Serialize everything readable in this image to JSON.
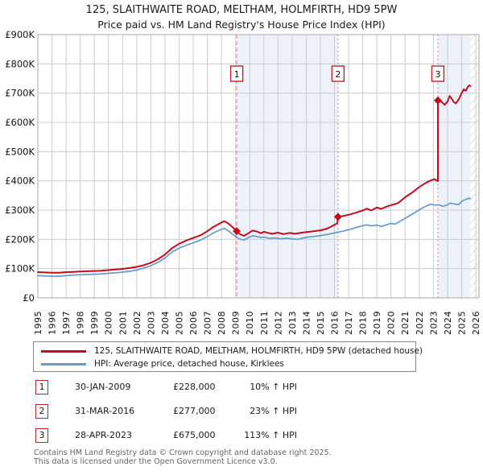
{
  "title": {
    "line1": "125, SLAITHWAITE ROAD, MELTHAM, HOLMFIRTH, HD9 5PW",
    "line2": "Price paid vs. HM Land Registry's House Price Index (HPI)"
  },
  "legend": {
    "entries": [
      {
        "label": "125, SLAITHWAITE ROAD, MELTHAM, HOLMFIRTH, HD9 5PW (detached house)",
        "color": "#c40a1c"
      },
      {
        "label": "HPI: Average price, detached house, Kirklees",
        "color": "#6699cc"
      }
    ]
  },
  "transactions": [
    {
      "num": "1",
      "date": "30-JAN-2009",
      "price": "£228,000",
      "hpi_change": "10% ↑ HPI"
    },
    {
      "num": "2",
      "date": "31-MAR-2016",
      "price": "£277,000",
      "hpi_change": "23% ↑ HPI"
    },
    {
      "num": "3",
      "date": "28-APR-2023",
      "price": "£675,000",
      "hpi_change": "113% ↑ HPI"
    }
  ],
  "footer": {
    "line1": "Contains HM Land Registry data © Crown copyright and database right 2025.",
    "line2": "This data is licensed under the Open Government Licence v3.0."
  },
  "chart_data": {
    "type": "line",
    "title": "125, SLAITHWAITE ROAD, MELTHAM, HOLMFIRTH, HD9 5PW",
    "subtitle": "Price paid vs. HM Land Registry's House Price Index (HPI)",
    "units": "GBP_thousands",
    "x_range": [
      1995,
      2026
    ],
    "y_range": [
      0,
      900
    ],
    "grid": true,
    "legend_position": "bottom",
    "colors": {
      "property_line": "#c40a1c",
      "hpi_line": "#6699cc",
      "sale_guide_line": "#ee7a7a",
      "shaded_region": "#edf2fa",
      "gridline": "#cccccc",
      "plot_border": "#aaaaaa",
      "hatch_line": "#c0c5cd"
    },
    "y_ticks": [
      {
        "v": 0,
        "label": "£0"
      },
      {
        "v": 100,
        "label": "£100K"
      },
      {
        "v": 200,
        "label": "£200K"
      },
      {
        "v": 300,
        "label": "£300K"
      },
      {
        "v": 400,
        "label": "£400K"
      },
      {
        "v": 500,
        "label": "£500K"
      },
      {
        "v": 600,
        "label": "£600K"
      },
      {
        "v": 700,
        "label": "£700K"
      },
      {
        "v": 800,
        "label": "£800K"
      },
      {
        "v": 900,
        "label": "£900K"
      }
    ],
    "x_ticks": [
      1995,
      1996,
      1997,
      1998,
      1999,
      2000,
      2001,
      2002,
      2003,
      2004,
      2005,
      2006,
      2007,
      2008,
      2009,
      2010,
      2011,
      2012,
      2013,
      2014,
      2015,
      2016,
      2017,
      2018,
      2019,
      2020,
      2021,
      2022,
      2023,
      2024,
      2025,
      2026
    ],
    "shaded_regions": [
      [
        2009.08,
        2016.25
      ],
      [
        2023.32,
        2025.62
      ]
    ],
    "hatch_region": {
      "start": 2025.62
    },
    "sales": [
      {
        "num": "1",
        "year": 2009.08,
        "price_k": 228,
        "date": "30-JAN-2009",
        "pct_vs_hpi": "10% ↑ HPI",
        "dash": "5,3"
      },
      {
        "num": "2",
        "year": 2016.25,
        "price_k": 277,
        "date": "31-MAR-2016",
        "pct_vs_hpi": "23% ↑ HPI",
        "dash": "2,3"
      },
      {
        "num": "3",
        "year": 2023.32,
        "price_k": 675,
        "date": "28-APR-2023",
        "pct_vs_hpi": "113% ↑ HPI",
        "dash": "2,3"
      }
    ],
    "series": [
      {
        "name": "125, SLAITHWAITE ROAD, MELTHAM, HOLMFIRTH, HD9 5PW (detached house)",
        "color": "#c40a1c",
        "width": 2,
        "points": [
          [
            1995,
            88
          ],
          [
            1995.5,
            87
          ],
          [
            1996,
            86
          ],
          [
            1996.5,
            86
          ],
          [
            1997,
            88
          ],
          [
            1997.5,
            89
          ],
          [
            1998,
            90
          ],
          [
            1998.5,
            91
          ],
          [
            1999,
            92
          ],
          [
            1999.5,
            93
          ],
          [
            2000,
            95
          ],
          [
            2000.5,
            97
          ],
          [
            2001,
            99
          ],
          [
            2001.5,
            102
          ],
          [
            2002,
            106
          ],
          [
            2002.5,
            112
          ],
          [
            2003,
            120
          ],
          [
            2003.5,
            132
          ],
          [
            2004,
            148
          ],
          [
            2004.5,
            170
          ],
          [
            2005,
            185
          ],
          [
            2005.5,
            196
          ],
          [
            2006,
            205
          ],
          [
            2006.3,
            210
          ],
          [
            2006.6,
            216
          ],
          [
            2007,
            228
          ],
          [
            2007.4,
            242
          ],
          [
            2007.8,
            252
          ],
          [
            2008,
            258
          ],
          [
            2008.2,
            262
          ],
          [
            2008.5,
            254
          ],
          [
            2008.8,
            241
          ],
          [
            2009.08,
            228
          ],
          [
            2009.3,
            218
          ],
          [
            2009.6,
            212
          ],
          [
            2009.9,
            221
          ],
          [
            2010.2,
            230
          ],
          [
            2010.5,
            227
          ],
          [
            2010.8,
            221
          ],
          [
            2011,
            226
          ],
          [
            2011.3,
            222
          ],
          [
            2011.6,
            219
          ],
          [
            2012,
            223
          ],
          [
            2012.4,
            218
          ],
          [
            2012.8,
            222
          ],
          [
            2013.2,
            219
          ],
          [
            2013.6,
            222
          ],
          [
            2014,
            225
          ],
          [
            2014.5,
            228
          ],
          [
            2015,
            231
          ],
          [
            2015.5,
            237
          ],
          [
            2016,
            250
          ],
          [
            2016.2,
            255
          ],
          [
            2016.25,
            277
          ],
          [
            2016.6,
            280
          ],
          [
            2017,
            284
          ],
          [
            2017.5,
            291
          ],
          [
            2018,
            299
          ],
          [
            2018.3,
            305
          ],
          [
            2018.6,
            299
          ],
          [
            2019,
            309
          ],
          [
            2019.3,
            304
          ],
          [
            2019.7,
            312
          ],
          [
            2020,
            317
          ],
          [
            2020.5,
            324
          ],
          [
            2021,
            344
          ],
          [
            2021.5,
            360
          ],
          [
            2022,
            379
          ],
          [
            2022.5,
            394
          ],
          [
            2022.8,
            401
          ],
          [
            2023.1,
            406
          ],
          [
            2023.25,
            400
          ],
          [
            2023.32,
            400
          ],
          [
            2023.32,
            675
          ],
          [
            2023.5,
            674
          ],
          [
            2023.65,
            667
          ],
          [
            2023.8,
            660
          ],
          [
            2024,
            671
          ],
          [
            2024.15,
            690
          ],
          [
            2024.3,
            681
          ],
          [
            2024.45,
            669
          ],
          [
            2024.6,
            665
          ],
          [
            2024.8,
            679
          ],
          [
            2025,
            699
          ],
          [
            2025.15,
            713
          ],
          [
            2025.3,
            708
          ],
          [
            2025.45,
            722
          ],
          [
            2025.55,
            727
          ],
          [
            2025.62,
            724
          ]
        ]
      },
      {
        "name": "HPI: Average price, detached house, Kirklees",
        "color": "#6699cc",
        "width": 1.7,
        "points": [
          [
            1995,
            76
          ],
          [
            1995.5,
            75
          ],
          [
            1996,
            74
          ],
          [
            1996.5,
            74
          ],
          [
            1997,
            76
          ],
          [
            1997.5,
            78
          ],
          [
            1998,
            79
          ],
          [
            1998.5,
            80
          ],
          [
            1999,
            81
          ],
          [
            1999.5,
            82
          ],
          [
            2000,
            84
          ],
          [
            2000.5,
            86
          ],
          [
            2001,
            88
          ],
          [
            2001.5,
            91
          ],
          [
            2002,
            95
          ],
          [
            2002.5,
            102
          ],
          [
            2003,
            110
          ],
          [
            2003.5,
            121
          ],
          [
            2004,
            136
          ],
          [
            2004.5,
            157
          ],
          [
            2005,
            170
          ],
          [
            2005.5,
            180
          ],
          [
            2006,
            188
          ],
          [
            2006.5,
            197
          ],
          [
            2007,
            210
          ],
          [
            2007.5,
            224
          ],
          [
            2008,
            234
          ],
          [
            2008.2,
            238
          ],
          [
            2008.5,
            229
          ],
          [
            2008.8,
            217
          ],
          [
            2009.08,
            207
          ],
          [
            2009.35,
            200
          ],
          [
            2009.6,
            198
          ],
          [
            2009.9,
            206
          ],
          [
            2010.2,
            212
          ],
          [
            2010.5,
            210
          ],
          [
            2010.8,
            206
          ],
          [
            2011,
            208
          ],
          [
            2011.4,
            203
          ],
          [
            2011.8,
            205
          ],
          [
            2012.2,
            202
          ],
          [
            2012.6,
            204
          ],
          [
            2013,
            202
          ],
          [
            2013.4,
            200
          ],
          [
            2013.8,
            205
          ],
          [
            2014.2,
            208
          ],
          [
            2014.6,
            210
          ],
          [
            2015,
            213
          ],
          [
            2015.5,
            217
          ],
          [
            2016,
            222
          ],
          [
            2016.25,
            225
          ],
          [
            2016.6,
            228
          ],
          [
            2017,
            233
          ],
          [
            2017.5,
            240
          ],
          [
            2018,
            247
          ],
          [
            2018.3,
            250
          ],
          [
            2018.6,
            246
          ],
          [
            2019,
            249
          ],
          [
            2019.3,
            244
          ],
          [
            2019.7,
            250
          ],
          [
            2020,
            255
          ],
          [
            2020.3,
            252
          ],
          [
            2020.6,
            261
          ],
          [
            2021,
            272
          ],
          [
            2021.5,
            286
          ],
          [
            2022,
            301
          ],
          [
            2022.4,
            312
          ],
          [
            2022.8,
            320
          ],
          [
            2023.1,
            317
          ],
          [
            2023.4,
            318
          ],
          [
            2023.7,
            313
          ],
          [
            2024,
            318
          ],
          [
            2024.2,
            324
          ],
          [
            2024.5,
            321
          ],
          [
            2024.8,
            319
          ],
          [
            2025,
            330
          ],
          [
            2025.3,
            337
          ],
          [
            2025.55,
            341
          ],
          [
            2025.62,
            339
          ]
        ]
      }
    ]
  }
}
